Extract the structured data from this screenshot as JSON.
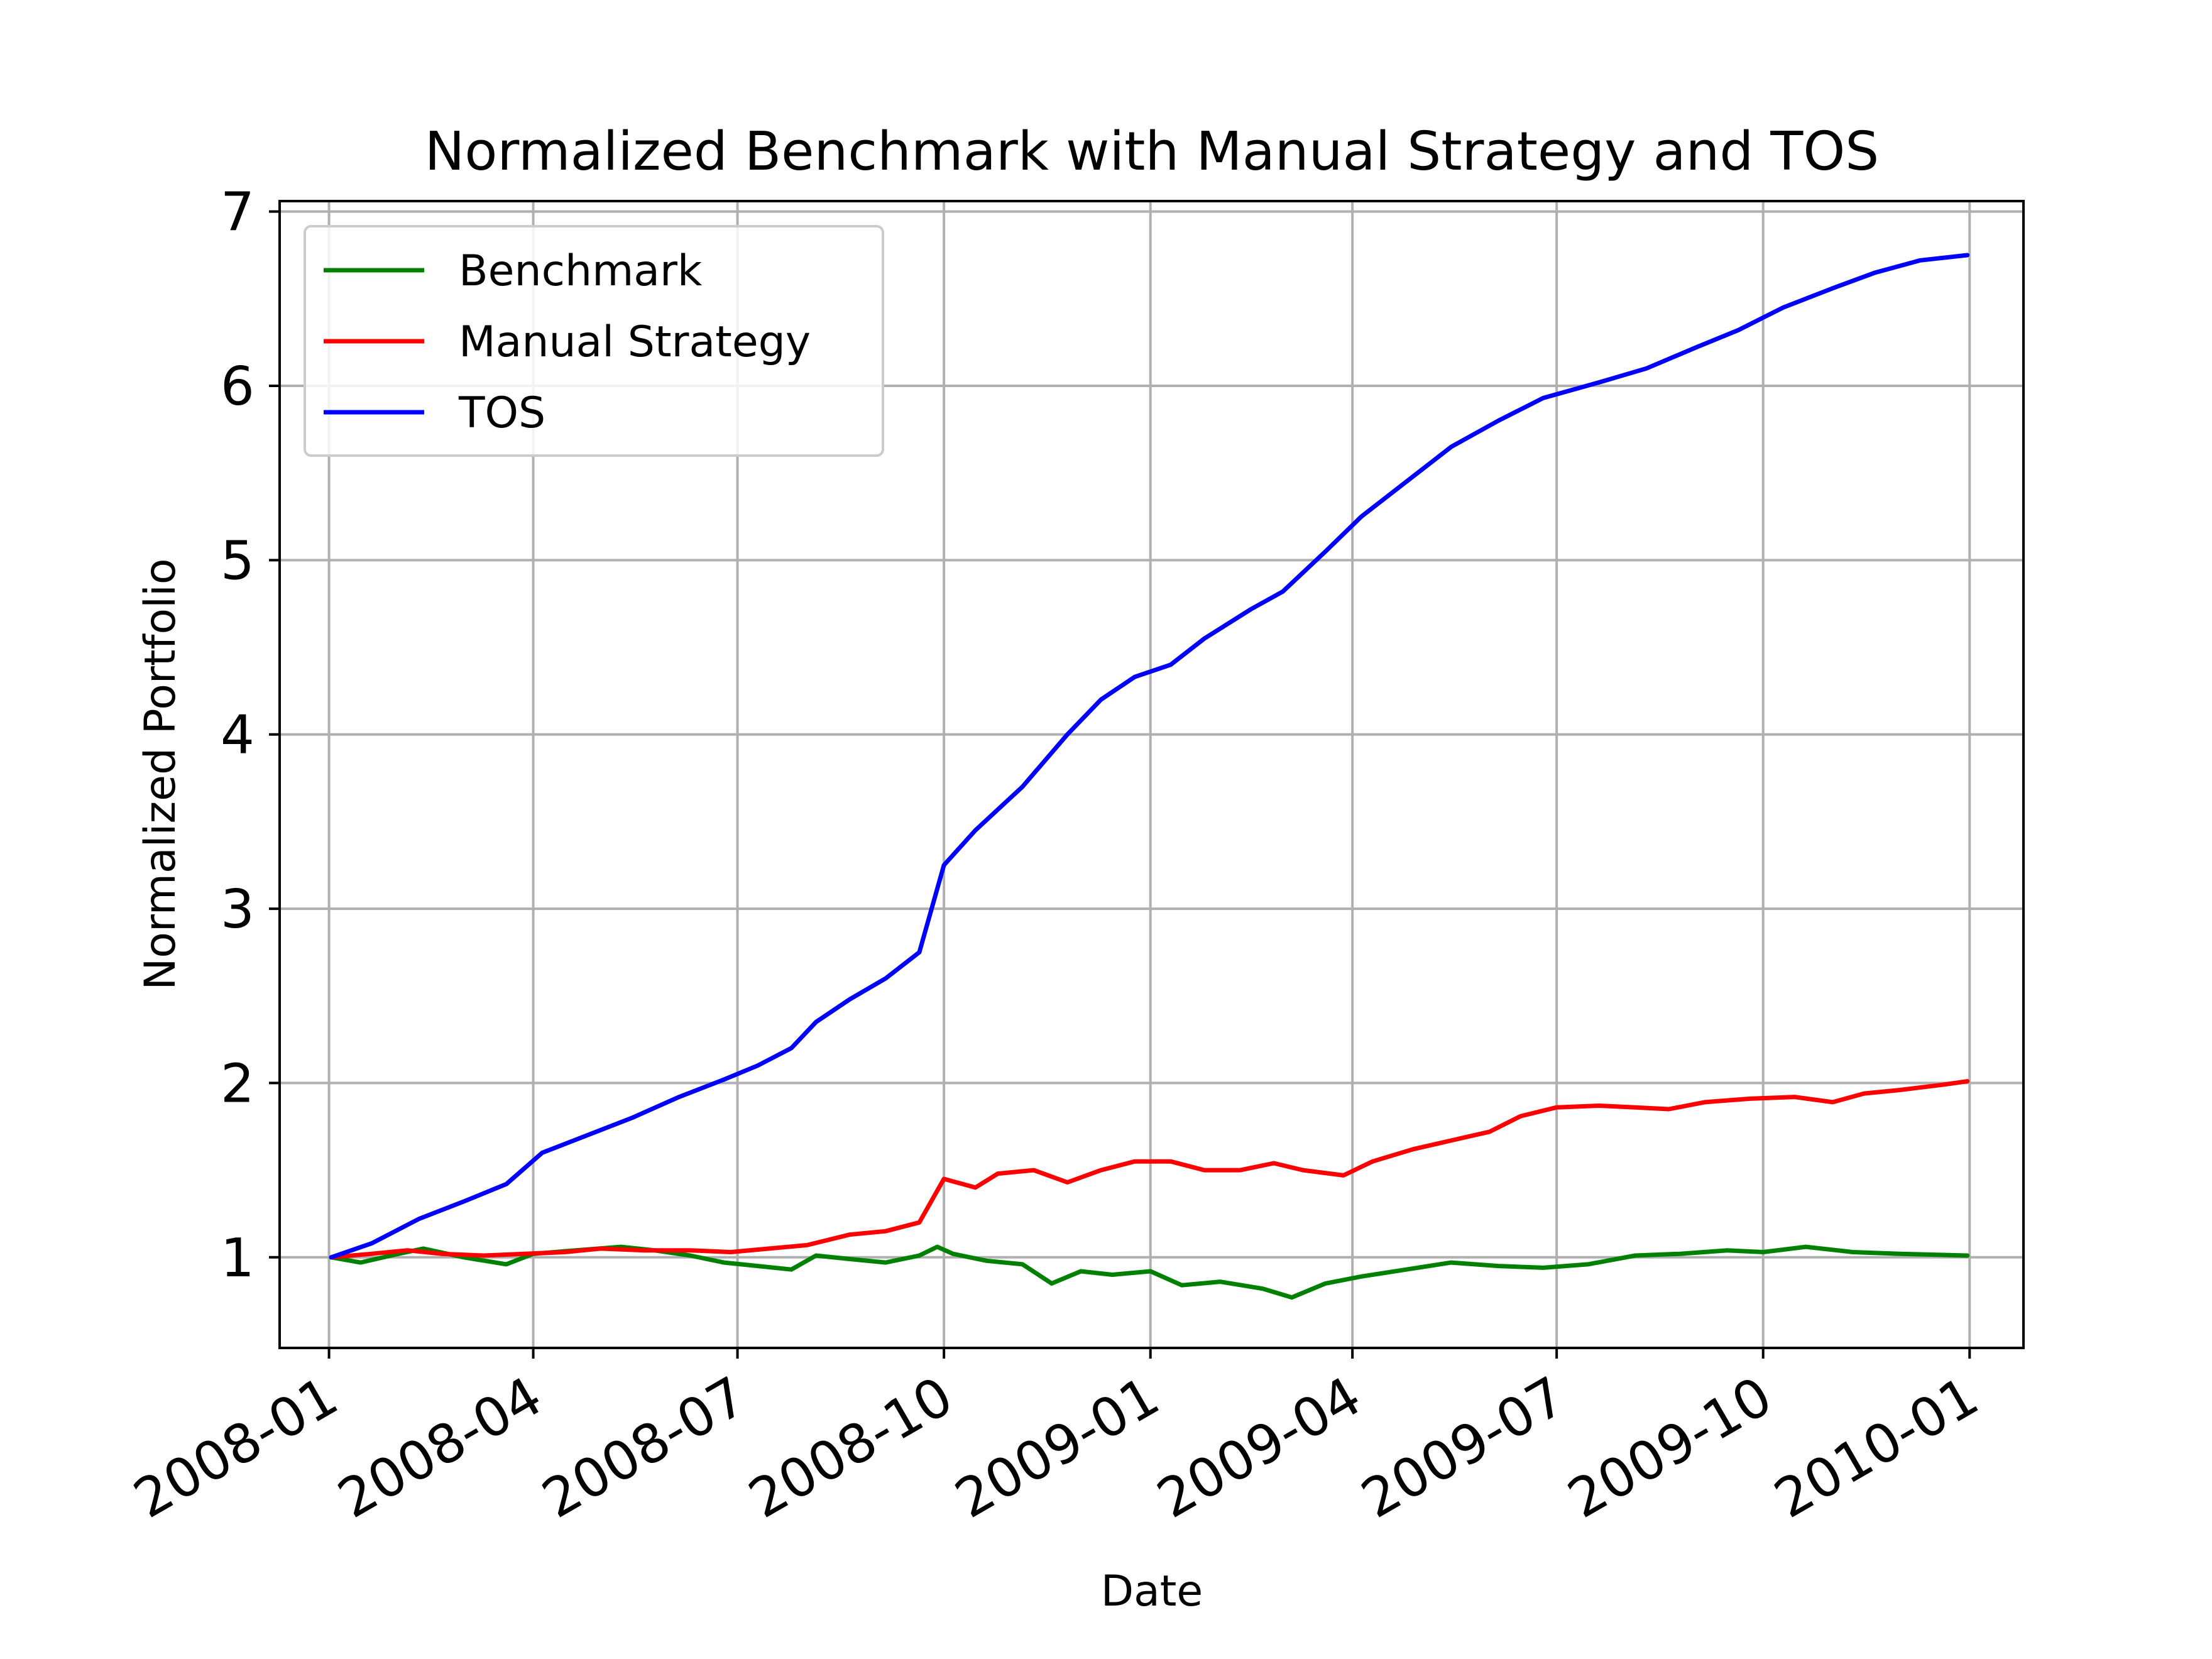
{
  "chart_data": {
    "type": "line",
    "title": "Normalized Benchmark with Manual Strategy and TOS",
    "xlabel": "Date",
    "ylabel": "Normalized Portfolio",
    "x_tick_labels": [
      "2008-01",
      "2008-04",
      "2008-07",
      "2008-10",
      "2009-01",
      "2009-04",
      "2009-07",
      "2009-10",
      "2010-01"
    ],
    "y_tick_labels": [
      "1",
      "2",
      "3",
      "4",
      "5",
      "6",
      "7"
    ],
    "y_ticks": [
      1,
      2,
      3,
      4,
      5,
      6,
      7
    ],
    "xlim": [
      "2007-12-10",
      "2010-01-25"
    ],
    "ylim": [
      0.48,
      7.06
    ],
    "grid": true,
    "legend_position": "top-left",
    "series": [
      {
        "name": "Benchmark",
        "color": "#008000",
        "points": [
          [
            "2008-01-02",
            1.0
          ],
          [
            "2008-01-15",
            0.97
          ],
          [
            "2008-02-01",
            1.02
          ],
          [
            "2008-02-12",
            1.05
          ],
          [
            "2008-03-01",
            1.0
          ],
          [
            "2008-03-20",
            0.96
          ],
          [
            "2008-04-01",
            1.02
          ],
          [
            "2008-04-20",
            1.04
          ],
          [
            "2008-05-10",
            1.06
          ],
          [
            "2008-05-25",
            1.04
          ],
          [
            "2008-06-10",
            1.01
          ],
          [
            "2008-06-25",
            0.97
          ],
          [
            "2008-07-10",
            0.95
          ],
          [
            "2008-07-25",
            0.93
          ],
          [
            "2008-08-05",
            1.01
          ],
          [
            "2008-08-20",
            0.99
          ],
          [
            "2008-09-05",
            0.97
          ],
          [
            "2008-09-20",
            1.01
          ],
          [
            "2008-09-28",
            1.06
          ],
          [
            "2008-10-05",
            1.02
          ],
          [
            "2008-10-20",
            0.98
          ],
          [
            "2008-11-05",
            0.96
          ],
          [
            "2008-11-18",
            0.85
          ],
          [
            "2008-12-01",
            0.92
          ],
          [
            "2008-12-15",
            0.9
          ],
          [
            "2009-01-01",
            0.92
          ],
          [
            "2009-01-15",
            0.84
          ],
          [
            "2009-02-01",
            0.86
          ],
          [
            "2009-02-20",
            0.82
          ],
          [
            "2009-03-05",
            0.77
          ],
          [
            "2009-03-20",
            0.85
          ],
          [
            "2009-04-05",
            0.89
          ],
          [
            "2009-04-25",
            0.93
          ],
          [
            "2009-05-15",
            0.97
          ],
          [
            "2009-06-05",
            0.95
          ],
          [
            "2009-06-25",
            0.94
          ],
          [
            "2009-07-15",
            0.96
          ],
          [
            "2009-08-05",
            1.01
          ],
          [
            "2009-08-25",
            1.02
          ],
          [
            "2009-09-15",
            1.04
          ],
          [
            "2009-10-01",
            1.03
          ],
          [
            "2009-10-20",
            1.06
          ],
          [
            "2009-11-10",
            1.03
          ],
          [
            "2009-12-01",
            1.02
          ],
          [
            "2009-12-31",
            1.01
          ]
        ]
      },
      {
        "name": "Manual Strategy",
        "color": "#ff0000",
        "points": [
          [
            "2008-01-02",
            1.0
          ],
          [
            "2008-01-20",
            1.02
          ],
          [
            "2008-02-05",
            1.04
          ],
          [
            "2008-02-20",
            1.02
          ],
          [
            "2008-03-10",
            1.01
          ],
          [
            "2008-03-28",
            1.02
          ],
          [
            "2008-04-15",
            1.03
          ],
          [
            "2008-05-01",
            1.05
          ],
          [
            "2008-05-20",
            1.04
          ],
          [
            "2008-06-10",
            1.04
          ],
          [
            "2008-06-28",
            1.03
          ],
          [
            "2008-07-15",
            1.05
          ],
          [
            "2008-08-01",
            1.07
          ],
          [
            "2008-08-20",
            1.13
          ],
          [
            "2008-09-05",
            1.15
          ],
          [
            "2008-09-20",
            1.2
          ],
          [
            "2008-10-01",
            1.45
          ],
          [
            "2008-10-15",
            1.4
          ],
          [
            "2008-10-25",
            1.48
          ],
          [
            "2008-11-10",
            1.5
          ],
          [
            "2008-11-25",
            1.43
          ],
          [
            "2008-12-10",
            1.5
          ],
          [
            "2008-12-25",
            1.55
          ],
          [
            "2009-01-10",
            1.55
          ],
          [
            "2009-01-25",
            1.5
          ],
          [
            "2009-02-10",
            1.5
          ],
          [
            "2009-02-25",
            1.54
          ],
          [
            "2009-03-10",
            1.5
          ],
          [
            "2009-03-28",
            1.47
          ],
          [
            "2009-04-10",
            1.55
          ],
          [
            "2009-04-28",
            1.62
          ],
          [
            "2009-05-15",
            1.67
          ],
          [
            "2009-06-01",
            1.72
          ],
          [
            "2009-06-15",
            1.81
          ],
          [
            "2009-07-01",
            1.86
          ],
          [
            "2009-07-20",
            1.87
          ],
          [
            "2009-08-05",
            1.86
          ],
          [
            "2009-08-20",
            1.85
          ],
          [
            "2009-09-05",
            1.89
          ],
          [
            "2009-09-25",
            1.91
          ],
          [
            "2009-10-15",
            1.92
          ],
          [
            "2009-11-01",
            1.89
          ],
          [
            "2009-11-15",
            1.94
          ],
          [
            "2009-12-01",
            1.96
          ],
          [
            "2009-12-20",
            1.99
          ],
          [
            "2009-12-31",
            2.01
          ]
        ]
      },
      {
        "name": "TOS",
        "color": "#0000ff",
        "points": [
          [
            "2008-01-02",
            1.0
          ],
          [
            "2008-01-20",
            1.08
          ],
          [
            "2008-02-10",
            1.22
          ],
          [
            "2008-03-01",
            1.32
          ],
          [
            "2008-03-20",
            1.42
          ],
          [
            "2008-04-05",
            1.6
          ],
          [
            "2008-04-25",
            1.7
          ],
          [
            "2008-05-15",
            1.8
          ],
          [
            "2008-06-05",
            1.92
          ],
          [
            "2008-06-25",
            2.02
          ],
          [
            "2008-07-10",
            2.1
          ],
          [
            "2008-07-25",
            2.2
          ],
          [
            "2008-08-05",
            2.35
          ],
          [
            "2008-08-20",
            2.48
          ],
          [
            "2008-09-05",
            2.6
          ],
          [
            "2008-09-20",
            2.75
          ],
          [
            "2008-10-01",
            3.25
          ],
          [
            "2008-10-15",
            3.45
          ],
          [
            "2008-11-05",
            3.7
          ],
          [
            "2008-11-25",
            4.0
          ],
          [
            "2008-12-10",
            4.2
          ],
          [
            "2008-12-25",
            4.33
          ],
          [
            "2009-01-10",
            4.4
          ],
          [
            "2009-01-25",
            4.55
          ],
          [
            "2009-02-15",
            4.72
          ],
          [
            "2009-03-01",
            4.82
          ],
          [
            "2009-03-20",
            5.05
          ],
          [
            "2009-04-05",
            5.25
          ],
          [
            "2009-04-25",
            5.45
          ],
          [
            "2009-05-15",
            5.65
          ],
          [
            "2009-06-05",
            5.8
          ],
          [
            "2009-06-25",
            5.93
          ],
          [
            "2009-07-20",
            6.02
          ],
          [
            "2009-08-10",
            6.1
          ],
          [
            "2009-09-01",
            6.22
          ],
          [
            "2009-09-20",
            6.32
          ],
          [
            "2009-10-10",
            6.45
          ],
          [
            "2009-11-01",
            6.56
          ],
          [
            "2009-11-20",
            6.65
          ],
          [
            "2009-12-10",
            6.72
          ],
          [
            "2009-12-31",
            6.75
          ]
        ]
      }
    ]
  }
}
